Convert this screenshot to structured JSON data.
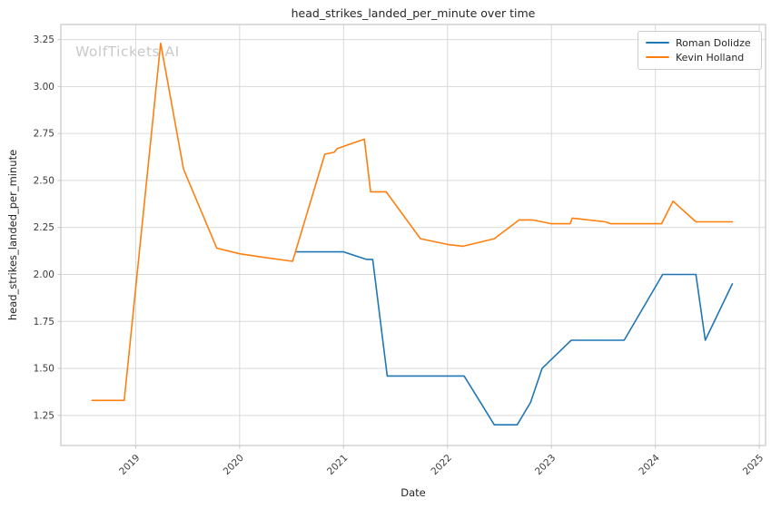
{
  "watermark": "WolfTickets AI",
  "colors": {
    "background": "#ffffff",
    "grid": "#d9d9d9",
    "spine": "#c6c6c6",
    "text": "#262626",
    "tick_text": "#3b3b3b",
    "watermark": "#c9c9c9",
    "blue": "#1f77b4",
    "orange": "#ff7f0e"
  },
  "legend": {
    "position": "top-right",
    "entries": [
      "Roman Dolidze",
      "Kevin Holland"
    ]
  },
  "chart_data": {
    "type": "line",
    "title": "head_strikes_landed_per_minute over time",
    "xlabel": "Date",
    "ylabel": "head_strikes_landed_per_minute",
    "xlim": [
      2018.28,
      2025.06
    ],
    "ylim": [
      1.09,
      3.33
    ],
    "grid": true,
    "x_ticks": [
      2019,
      2020,
      2021,
      2022,
      2023,
      2024,
      2025
    ],
    "y_ticks": [
      1.25,
      1.5,
      1.75,
      2.0,
      2.25,
      2.5,
      2.75,
      3.0,
      3.25
    ],
    "series": [
      {
        "name": "Roman Dolidze",
        "color": "#1f77b4",
        "x": [
          2020.55,
          2021.0,
          2021.22,
          2021.28,
          2021.42,
          2022.16,
          2022.45,
          2022.67,
          2022.8,
          2022.91,
          2023.19,
          2023.7,
          2024.07,
          2024.39,
          2024.48,
          2024.74
        ],
        "y": [
          2.12,
          2.12,
          2.08,
          2.08,
          1.46,
          1.46,
          1.2,
          1.2,
          1.32,
          1.5,
          1.65,
          1.65,
          2.0,
          2.0,
          1.65,
          1.95
        ]
      },
      {
        "name": "Kevin Holland",
        "color": "#ff7f0e",
        "x": [
          2018.58,
          2018.89,
          2019.24,
          2019.46,
          2019.78,
          2020.0,
          2020.25,
          2020.51,
          2020.82,
          2020.91,
          2020.94,
          2021.2,
          2021.26,
          2021.41,
          2021.74,
          2022.0,
          2022.15,
          2022.45,
          2022.69,
          2022.82,
          2023.0,
          2023.18,
          2023.2,
          2023.52,
          2023.57,
          2024.06,
          2024.17,
          2024.39,
          2024.74
        ],
        "y": [
          1.33,
          1.33,
          3.23,
          2.56,
          2.14,
          2.11,
          2.09,
          2.07,
          2.64,
          2.65,
          2.67,
          2.72,
          2.44,
          2.44,
          2.19,
          2.16,
          2.15,
          2.19,
          2.29,
          2.29,
          2.27,
          2.27,
          2.3,
          2.28,
          2.27,
          2.27,
          2.39,
          2.28,
          2.28
        ]
      }
    ]
  }
}
